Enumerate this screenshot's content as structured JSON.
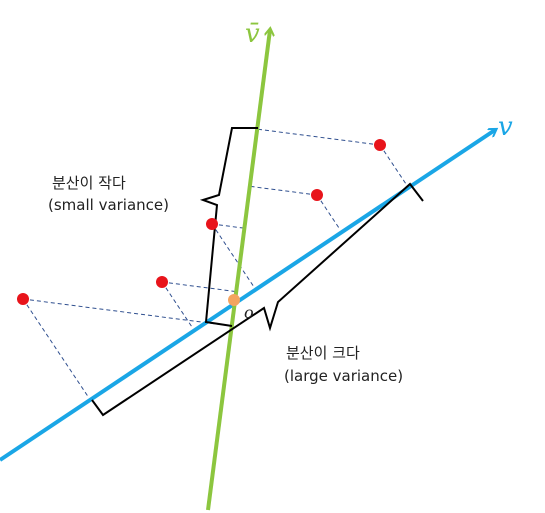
{
  "axes": {
    "v_bar": "v̄",
    "v": "v",
    "origin": "o"
  },
  "annotations": {
    "small": {
      "korean": "분산이 작다",
      "english": "(small variance)"
    },
    "large": {
      "korean": "분산이 크다",
      "english": "(large variance)"
    }
  }
}
